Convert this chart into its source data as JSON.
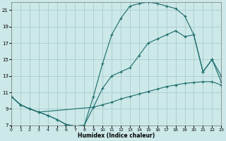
{
  "background_color": "#cce8e8",
  "grid_color": "#aacccc",
  "line_color": "#1a6b6b",
  "xlabel": "Humidex (Indice chaleur)",
  "xlim": [
    0,
    23
  ],
  "ylim": [
    7,
    22
  ],
  "xticks": [
    0,
    1,
    2,
    3,
    4,
    5,
    6,
    7,
    8,
    9,
    10,
    11,
    12,
    13,
    14,
    15,
    16,
    17,
    18,
    19,
    20,
    21,
    22,
    23
  ],
  "yticks": [
    7,
    9,
    11,
    13,
    15,
    17,
    19,
    21
  ],
  "line1_x": [
    0,
    1,
    2,
    3,
    4,
    5,
    6,
    7,
    8,
    9,
    10,
    11,
    12,
    13,
    14,
    15,
    16,
    17,
    18,
    19,
    20,
    21,
    22,
    23
  ],
  "line1_y": [
    10.5,
    9.5,
    9.0,
    8.6,
    8.2,
    7.7,
    7.1,
    6.9,
    7.0,
    9.2,
    9.5,
    9.8,
    10.2,
    10.5,
    10.8,
    11.1,
    11.4,
    11.7,
    11.9,
    12.1,
    12.2,
    12.3,
    12.3,
    11.9
  ],
  "line2_x": [
    0,
    1,
    2,
    3,
    9,
    10,
    11,
    12,
    13,
    14,
    15,
    16,
    17,
    18,
    19,
    20,
    21,
    22,
    23
  ],
  "line2_y": [
    10.5,
    9.5,
    9.0,
    8.6,
    9.2,
    11.5,
    13.0,
    13.5,
    14.0,
    15.5,
    17.0,
    17.5,
    18.0,
    18.5,
    17.8,
    18.0,
    13.5,
    15.0,
    13.0
  ],
  "line3_x": [
    0,
    1,
    2,
    3,
    4,
    5,
    6,
    7,
    8,
    9,
    10,
    11,
    12,
    13,
    14,
    15,
    16,
    17,
    18,
    19,
    20,
    21,
    22,
    23
  ],
  "line3_y": [
    10.5,
    9.5,
    9.0,
    8.6,
    8.2,
    7.7,
    7.1,
    6.9,
    7.0,
    10.5,
    14.5,
    18.0,
    20.0,
    21.5,
    21.8,
    22.0,
    21.8,
    21.5,
    21.2,
    20.3,
    18.0,
    13.5,
    15.0,
    12.3
  ]
}
